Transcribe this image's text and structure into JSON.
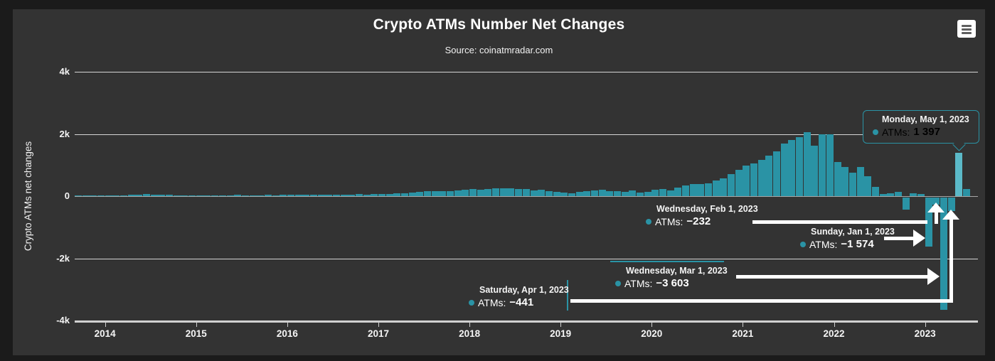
{
  "labels": {
    "atms": "ATMs:"
  },
  "ui": {
    "context_menu": "chart context menu"
  },
  "chart_data": {
    "type": "bar",
    "title": "Crypto ATMs Number Net Changes",
    "subtitle": "Source: coinatmradar.com",
    "xlabel": "",
    "ylabel": "Crypto ATMs net changes",
    "x_unit": "month",
    "x_start": "2013-09",
    "x_end": "2023-06",
    "x_tick_labels": [
      "2014",
      "2015",
      "2016",
      "2017",
      "2018",
      "2019",
      "2020",
      "2021",
      "2022",
      "2023"
    ],
    "y_ticks": [
      {
        "label": "4k",
        "value": 4000
      },
      {
        "label": "2k",
        "value": 2000
      },
      {
        "label": "0",
        "value": 0
      },
      {
        "label": "-2k",
        "value": -2000
      },
      {
        "label": "-4k",
        "value": -4000
      }
    ],
    "ylim": [
      -4000,
      4000
    ],
    "grid": true,
    "legend": false,
    "series": [
      {
        "name": "ATMs",
        "values": [
          5,
          8,
          10,
          15,
          20,
          25,
          30,
          35,
          45,
          60,
          55,
          40,
          35,
          30,
          25,
          20,
          25,
          20,
          30,
          25,
          30,
          35,
          30,
          25,
          30,
          35,
          30,
          35,
          40,
          35,
          45,
          40,
          50,
          45,
          55,
          50,
          55,
          60,
          55,
          65,
          70,
          80,
          90,
          100,
          110,
          130,
          150,
          170,
          150,
          160,
          180,
          200,
          220,
          200,
          240,
          260,
          250,
          260,
          240,
          230,
          180,
          200,
          160,
          140,
          120,
          100,
          130,
          160,
          180,
          200,
          170,
          150,
          130,
          180,
          120,
          140,
          200,
          240,
          180,
          280,
          350,
          400,
          380,
          420,
          500,
          580,
          700,
          850,
          975,
          1050,
          1170,
          1300,
          1450,
          1700,
          1800,
          1900,
          2060,
          1620,
          2000,
          1980,
          1100,
          940,
          760,
          940,
          640,
          300,
          60,
          90,
          130,
          -390,
          90,
          60,
          -1574,
          -232,
          -3603,
          -441,
          1397,
          230
        ]
      }
    ],
    "highlight": {
      "month": "2023-05",
      "index": 116
    },
    "annotations": [
      {
        "date": "Monday, May 1, 2023",
        "value_text": "1 397",
        "value": 1397,
        "style": "tooltip-box"
      },
      {
        "date": "Wednesday, Feb 1, 2023",
        "value_text": "−232",
        "value": -232,
        "style": "arrow"
      },
      {
        "date": "Sunday, Jan 1, 2023",
        "value_text": "−1 574",
        "value": -1574,
        "style": "arrow"
      },
      {
        "date": "Wednesday, Mar 1, 2023",
        "value_text": "−3 603",
        "value": -3603,
        "style": "arrow"
      },
      {
        "date": "Saturday, Apr 1, 2023",
        "value_text": "−441",
        "value": -441,
        "style": "arrow"
      }
    ],
    "colors": {
      "bar": "#2a93a5",
      "bar_highlight": "#5bb9c8",
      "grid": "#d6d6d6",
      "zero_line": "#a8a8a8",
      "axis": "#cfcfcf",
      "background": "#333333",
      "frame": "#1b1b1b",
      "text": "#ffffff",
      "tooltip_border": "#2a93a5",
      "marker": "#2a93a5"
    }
  }
}
